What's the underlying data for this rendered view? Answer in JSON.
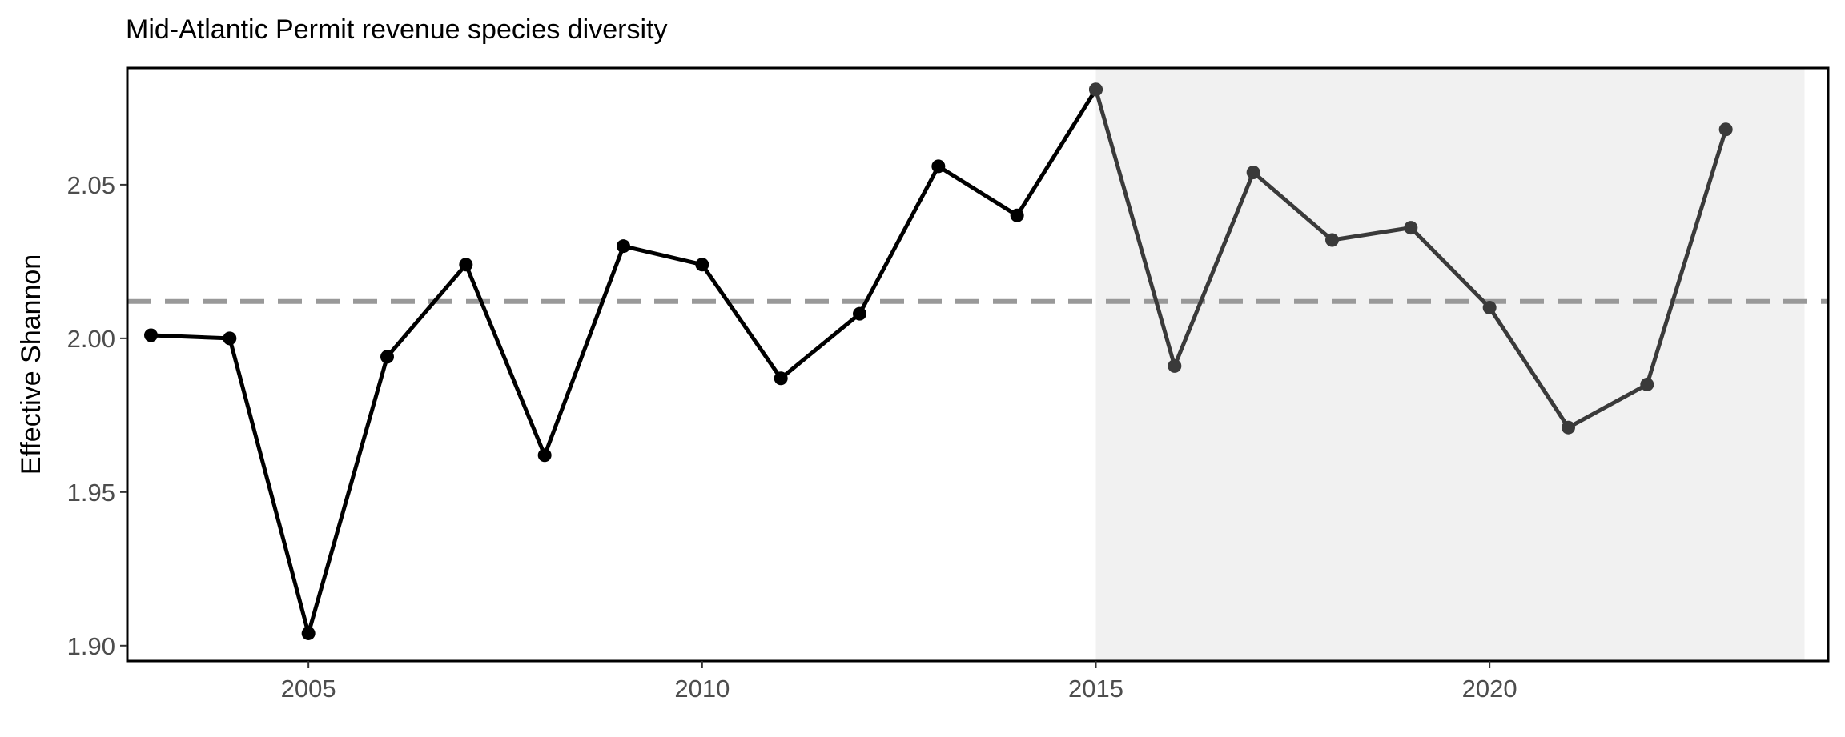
{
  "chart_data": {
    "type": "line",
    "title": "Mid-Atlantic Permit revenue species diversity",
    "xlabel": "",
    "ylabel": "Effective Shannon",
    "xlim": [
      2002.7,
      2024.3
    ],
    "ylim": [
      1.895,
      2.088
    ],
    "xticks": [
      2005,
      2010,
      2015,
      2020
    ],
    "yticks": [
      1.9,
      1.95,
      2.0,
      2.05
    ],
    "ytick_labels": [
      "1.90",
      "1.95",
      "2.00",
      "2.05"
    ],
    "reference_line": {
      "y": 2.012,
      "style": "dashed",
      "color": "#999999"
    },
    "shaded_region": {
      "x": [
        2015,
        2024
      ],
      "color": "#f1f1f1"
    },
    "series": [
      {
        "color": "#000000",
        "x": [
          2003,
          2004,
          2005,
          2006,
          2007,
          2008,
          2009,
          2010,
          2011,
          2012,
          2013,
          2014,
          2015
        ],
        "values": [
          2.001,
          2.0,
          1.904,
          1.994,
          2.024,
          1.962,
          2.03,
          2.024,
          1.987,
          2.008,
          2.056,
          2.04,
          2.081
        ]
      },
      {
        "color": "#3a3a3a",
        "x": [
          2015,
          2016,
          2017,
          2018,
          2019,
          2020,
          2021,
          2022,
          2023
        ],
        "values": [
          2.081,
          1.991,
          2.054,
          2.032,
          2.036,
          2.01,
          1.971,
          1.985,
          2.068
        ]
      }
    ],
    "grid": false,
    "legend": "none"
  }
}
